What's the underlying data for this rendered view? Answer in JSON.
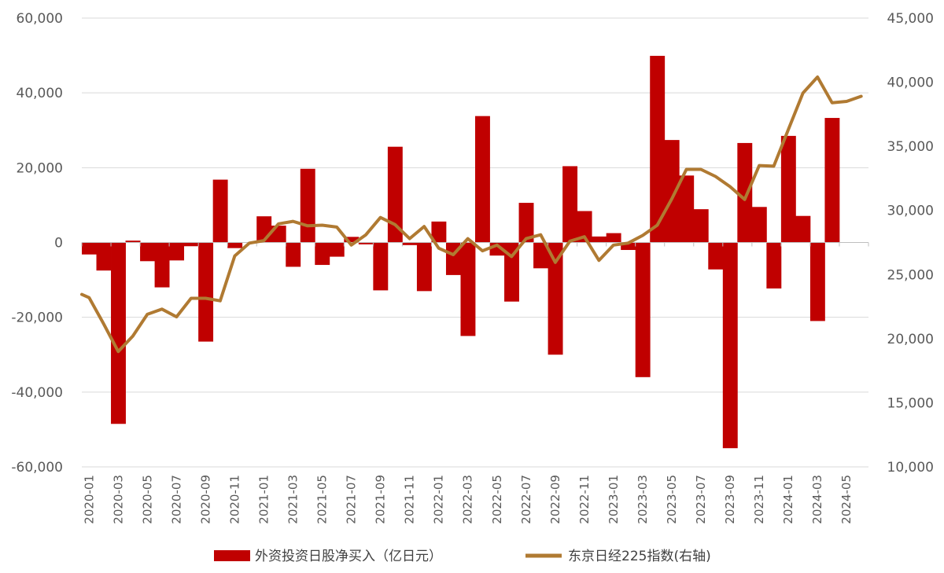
{
  "chart_data": {
    "type": "bar+line",
    "colors": {
      "bar": "#c00000",
      "line": "#b07a32",
      "grid": "#d9d9d9",
      "text": "#595959"
    },
    "x": [
      "2020-01",
      "2020-02",
      "2020-03",
      "2020-04",
      "2020-05",
      "2020-06",
      "2020-07",
      "2020-08",
      "2020-09",
      "2020-10",
      "2020-11",
      "2020-12",
      "2021-01",
      "2021-02",
      "2021-03",
      "2021-04",
      "2021-05",
      "2021-06",
      "2021-07",
      "2021-08",
      "2021-09",
      "2021-10",
      "2021-11",
      "2021-12",
      "2022-01",
      "2022-02",
      "2022-03",
      "2022-04",
      "2022-05",
      "2022-06",
      "2022-07",
      "2022-08",
      "2022-09",
      "2022-10",
      "2022-11",
      "2022-12",
      "2023-01",
      "2023-02",
      "2023-03",
      "2023-04",
      "2023-05",
      "2023-06",
      "2023-07",
      "2023-08",
      "2023-09",
      "2023-10",
      "2023-11",
      "2023-12",
      "2024-01",
      "2024-02",
      "2024-03",
      "2024-04",
      "2024-05",
      "2024-06"
    ],
    "x_tick_labels": [
      "2020-01",
      "2020-03",
      "2020-05",
      "2020-07",
      "2020-09",
      "2020-11",
      "2021-01",
      "2021-03",
      "2021-05",
      "2021-07",
      "2021-09",
      "2021-11",
      "2022-01",
      "2022-03",
      "2022-05",
      "2022-07",
      "2022-09",
      "2022-11",
      "2023-01",
      "2023-03",
      "2023-05",
      "2023-07",
      "2023-09",
      "2023-11",
      "2024-01",
      "2024-03",
      "2024-05"
    ],
    "left_axis": {
      "ylim": [
        -60000,
        60000
      ],
      "ticks": [
        60000,
        40000,
        20000,
        0,
        -20000,
        -40000,
        -60000
      ],
      "tick_labels": [
        "60,000",
        "40,000",
        "20,000",
        "0",
        "-20,000",
        "-40,000",
        "-60,000"
      ]
    },
    "right_axis": {
      "ylim": [
        10000,
        45000
      ],
      "ticks": [
        45000,
        40000,
        35000,
        30000,
        25000,
        20000,
        15000,
        10000
      ],
      "tick_labels": [
        "45,000",
        "40,000",
        "35,000",
        "30,000",
        "25,000",
        "20,000",
        "15,000",
        "10,000"
      ]
    },
    "series": [
      {
        "name": "外资投资日股净买入（亿日元）",
        "type": "bar",
        "axis": "left",
        "values": [
          -3200,
          -7500,
          -48500,
          500,
          -5000,
          -12000,
          -4800,
          -1000,
          -26500,
          16800,
          -1500,
          0,
          7000,
          4500,
          -6500,
          19700,
          -6000,
          -3800,
          1500,
          -500,
          -12800,
          25600,
          -700,
          -13000,
          5600,
          -8700,
          -25000,
          33800,
          -3500,
          -15800,
          10600,
          -6900,
          -30000,
          20400,
          8400,
          1600,
          2500,
          -2000,
          -36000,
          49900,
          27400,
          17900,
          8900,
          -7200,
          -55000,
          26600,
          9500,
          -12300,
          28500,
          7100,
          -21000,
          33300,
          0,
          0
        ]
      },
      {
        "name": "东京日经225指数(右轴)",
        "type": "line",
        "axis": "right",
        "values": [
          23200,
          21150,
          19000,
          20200,
          21900,
          22300,
          21700,
          23150,
          23150,
          22950,
          26450,
          27450,
          27650,
          28950,
          29150,
          28800,
          28850,
          28700,
          27300,
          28100,
          29450,
          28900,
          27800,
          28750,
          27050,
          26550,
          27800,
          26850,
          27300,
          26400,
          27800,
          28100,
          25950,
          27600,
          27950,
          26100,
          27300,
          27450,
          28050,
          28850,
          30900,
          33200,
          33200,
          32650,
          31850,
          30850,
          33500,
          33450,
          36300,
          39150,
          40400,
          38400,
          38500,
          38900
        ]
      }
    ],
    "legend_position": "bottom",
    "grid": true
  }
}
